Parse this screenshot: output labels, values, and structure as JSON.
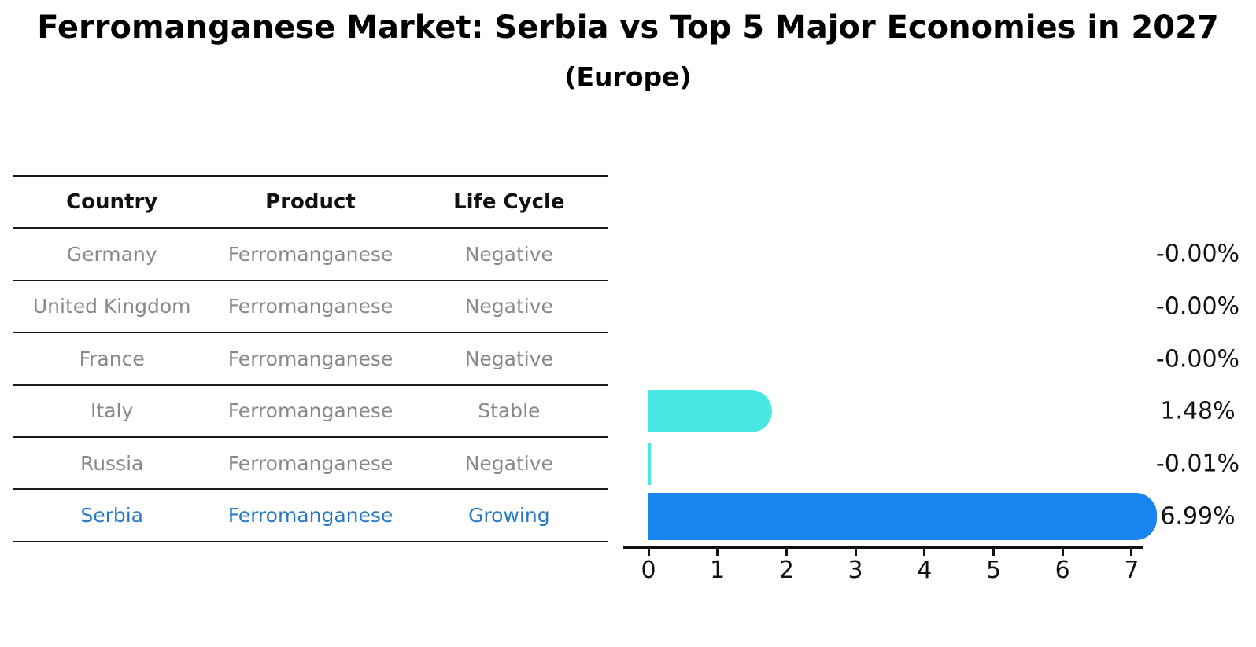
{
  "title": "Ferromanganese Market: Serbia vs Top 5 Major Economies in 2027",
  "subtitle": "(Europe)",
  "table": {
    "headers": [
      "Country",
      "Product",
      "Life Cycle"
    ],
    "rows": [
      {
        "country": "Germany",
        "product": "Ferromanganese",
        "life_cycle": "Negative"
      },
      {
        "country": "United Kingdom",
        "product": "Ferromanganese",
        "life_cycle": "Negative"
      },
      {
        "country": "France",
        "product": "Ferromanganese",
        "life_cycle": "Negative"
      },
      {
        "country": "Italy",
        "product": "Ferromanganese",
        "life_cycle": "Stable"
      },
      {
        "country": "Russia",
        "product": "Ferromanganese",
        "life_cycle": "Negative"
      },
      {
        "country": "Serbia",
        "product": "Ferromanganese",
        "life_cycle": "Growing"
      }
    ]
  },
  "chart_data": {
    "type": "bar",
    "orientation": "horizontal",
    "title": "Ferromanganese Market: Serbia vs Top 5 Major Economies in 2027 (Europe)",
    "categories": [
      "Germany",
      "United Kingdom",
      "France",
      "Italy",
      "Russia",
      "Serbia"
    ],
    "values": [
      -0.0,
      -0.0,
      -0.0,
      1.48,
      -0.01,
      6.99
    ],
    "value_labels": [
      "-0.00%",
      "-0.00%",
      "-0.00%",
      "1.48%",
      "-0.01%",
      "6.99%"
    ],
    "x_ticks": [
      0,
      1,
      2,
      3,
      4,
      5,
      6,
      7
    ],
    "xlim": [
      0,
      7.5
    ],
    "xlabel": "",
    "ylabel": "",
    "grid": false,
    "legend": false,
    "bar_color": "#4ae8e2",
    "highlight_color": "#1a84f0",
    "highlight_index": 5
  },
  "colors": {
    "table_line": "#1a1a1a",
    "text_muted": "#888888",
    "highlight_text": "#2878c8",
    "axis": "#111111"
  }
}
